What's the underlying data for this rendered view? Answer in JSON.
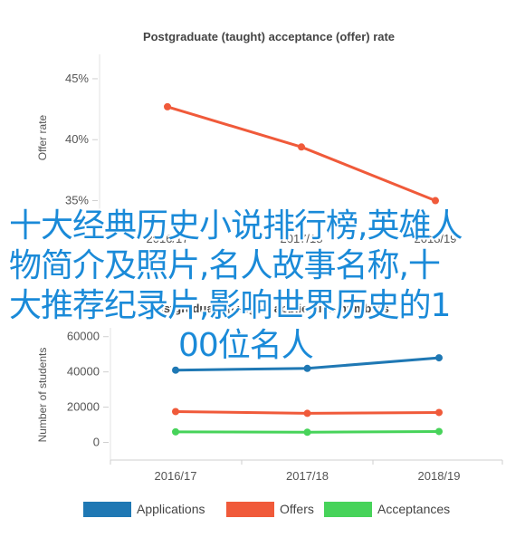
{
  "chart_data": [
    {
      "type": "line",
      "title": "Postgraduate (taught) acceptance (offer) rate",
      "ylabel": "Offer rate",
      "categories": [
        "2016/17",
        "2017/18",
        "2018/19"
      ],
      "yticks": [
        "35%",
        "40%",
        "45%"
      ],
      "ylim": [
        34,
        47
      ],
      "series": [
        {
          "values": [
            42.7,
            39.4,
            35.0
          ],
          "color": "#f05a3a"
        }
      ]
    },
    {
      "type": "line",
      "title": "Postgraduate (taught) application numbers",
      "ylabel": "Number of students",
      "categories": [
        "2016/17",
        "2017/18",
        "2018/19"
      ],
      "yticks": [
        "0",
        "20000",
        "40000",
        "60000"
      ],
      "ylim": [
        -10000,
        65000
      ],
      "series": [
        {
          "name": "Applications",
          "values": [
            41000,
            42000,
            48000
          ],
          "color": "#1f78b4"
        },
        {
          "name": "Offers",
          "values": [
            17500,
            16500,
            17000
          ],
          "color": "#f05a3a"
        },
        {
          "name": "Acceptances",
          "values": [
            6000,
            5800,
            6200
          ],
          "color": "#47d35a"
        }
      ]
    }
  ],
  "overlay_text": {
    "line1": "十大经典历史小说排行榜,英雄人",
    "line2": "物简介及照片,名人故事名称,十",
    "line3": "大推荐纪录片,影响世界历史的1",
    "line4": "00位名人"
  }
}
